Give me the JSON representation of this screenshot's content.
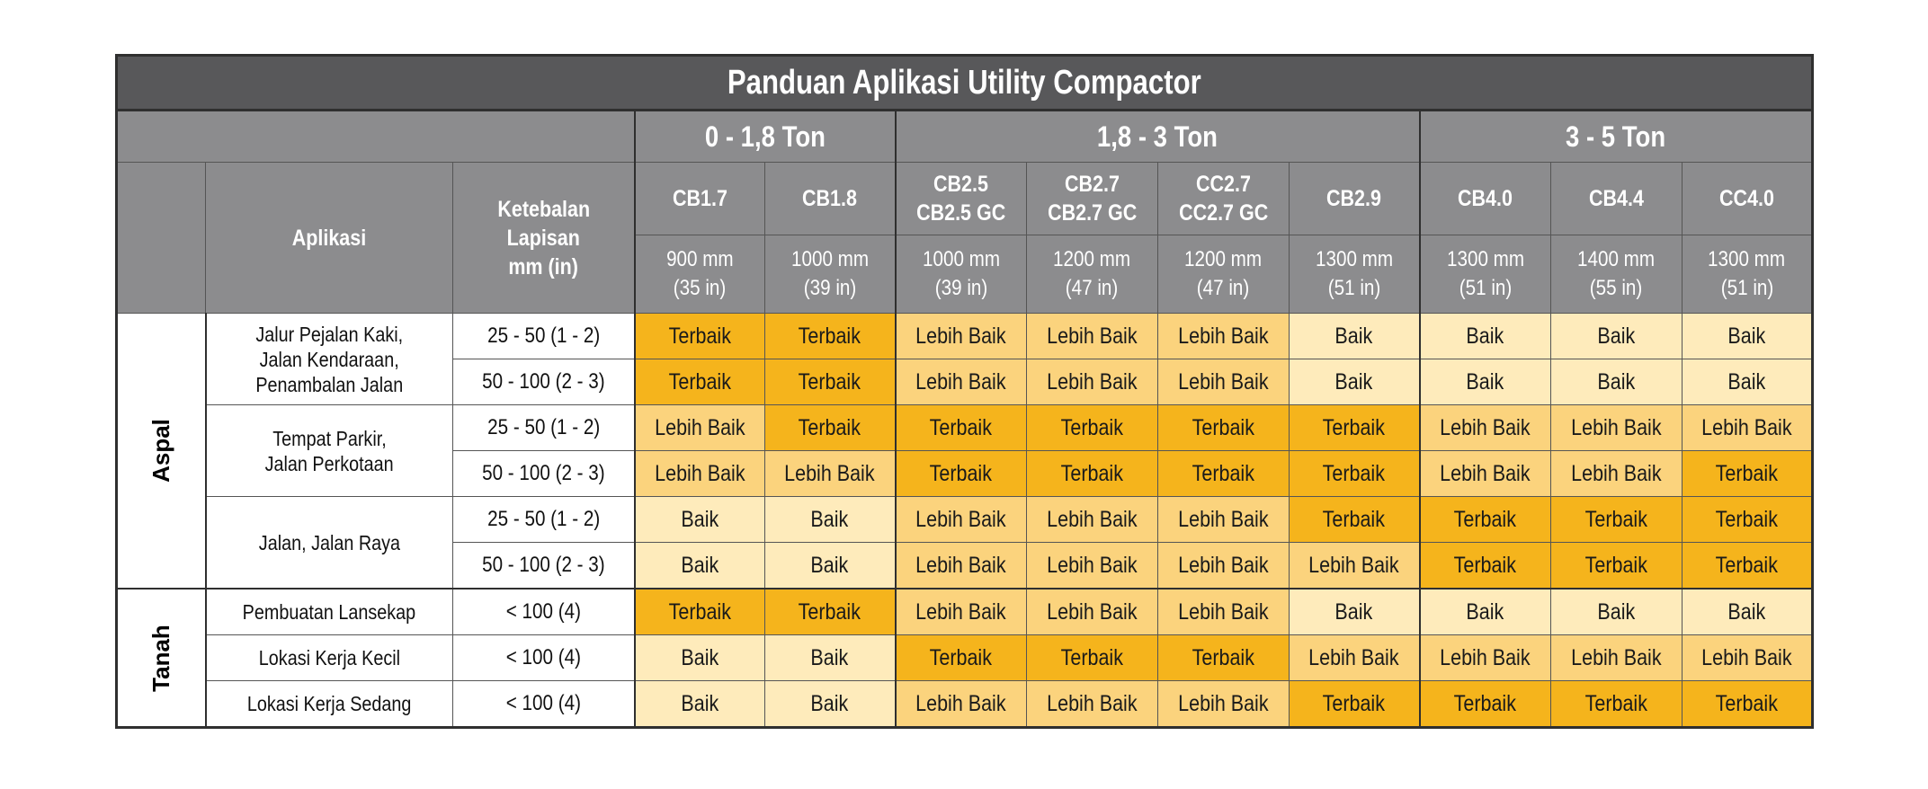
{
  "title": "Panduan Aplikasi Utility Compactor",
  "colors": {
    "title_bg": "#58585a",
    "header_bg": "#8c8c8e",
    "Terbaik": "#f5b41c",
    "Lebih Baik": "#fbd37d",
    "Baik": "#feebbb"
  },
  "header": {
    "application_label": "Aplikasi",
    "thickness_label_lines": [
      "Ketebalan",
      "Lapisan",
      "mm (in)"
    ],
    "groups": [
      {
        "label": "0 - 1,8 Ton",
        "span": 2
      },
      {
        "label": "1,8 - 3 Ton",
        "span": 4
      },
      {
        "label": "3 - 5 Ton",
        "span": 3
      }
    ],
    "models": [
      {
        "name_lines": [
          "CB1.7"
        ],
        "width_lines": [
          "900 mm",
          "(35 in)"
        ]
      },
      {
        "name_lines": [
          "CB1.8"
        ],
        "width_lines": [
          "1000 mm",
          "(39 in)"
        ]
      },
      {
        "name_lines": [
          "CB2.5",
          "CB2.5 GC"
        ],
        "width_lines": [
          "1000 mm",
          "(39 in)"
        ]
      },
      {
        "name_lines": [
          "CB2.7",
          "CB2.7 GC"
        ],
        "width_lines": [
          "1200 mm",
          "(47 in)"
        ]
      },
      {
        "name_lines": [
          "CC2.7",
          "CC2.7 GC"
        ],
        "width_lines": [
          "1200 mm",
          "(47 in)"
        ]
      },
      {
        "name_lines": [
          "CB2.9"
        ],
        "width_lines": [
          "1300 mm",
          "(51 in)"
        ]
      },
      {
        "name_lines": [
          "CB4.0"
        ],
        "width_lines": [
          "1300 mm",
          "(51 in)"
        ]
      },
      {
        "name_lines": [
          "CB4.4"
        ],
        "width_lines": [
          "1400 mm",
          "(55 in)"
        ]
      },
      {
        "name_lines": [
          "CC4.0"
        ],
        "width_lines": [
          "1300 mm",
          "(51 in)"
        ]
      }
    ]
  },
  "categories": [
    {
      "name": "Aspal",
      "applications": [
        {
          "name_lines": [
            "Jalur Pejalan Kaki,",
            "Jalan Kendaraan,",
            "Penambalan Jalan"
          ],
          "rows": [
            {
              "thickness": "25 - 50 (1 - 2)",
              "values": [
                "Terbaik",
                "Terbaik",
                "Lebih Baik",
                "Lebih Baik",
                "Lebih Baik",
                "Baik",
                "Baik",
                "Baik",
                "Baik"
              ]
            },
            {
              "thickness": "50 - 100 (2 - 3)",
              "values": [
                "Terbaik",
                "Terbaik",
                "Lebih Baik",
                "Lebih Baik",
                "Lebih Baik",
                "Baik",
                "Baik",
                "Baik",
                "Baik"
              ]
            }
          ]
        },
        {
          "name_lines": [
            "Tempat Parkir,",
            "Jalan Perkotaan"
          ],
          "rows": [
            {
              "thickness": "25 - 50 (1 - 2)",
              "values": [
                "Lebih Baik",
                "Terbaik",
                "Terbaik",
                "Terbaik",
                "Terbaik",
                "Terbaik",
                "Lebih Baik",
                "Lebih Baik",
                "Lebih Baik"
              ]
            },
            {
              "thickness": "50 - 100 (2 - 3)",
              "values": [
                "Lebih Baik",
                "Lebih Baik",
                "Terbaik",
                "Terbaik",
                "Terbaik",
                "Terbaik",
                "Lebih Baik",
                "Lebih Baik",
                "Terbaik"
              ]
            }
          ]
        },
        {
          "name_lines": [
            "Jalan, Jalan Raya"
          ],
          "rows": [
            {
              "thickness": "25 - 50 (1 - 2)",
              "values": [
                "Baik",
                "Baik",
                "Lebih Baik",
                "Lebih Baik",
                "Lebih Baik",
                "Terbaik",
                "Terbaik",
                "Terbaik",
                "Terbaik"
              ]
            },
            {
              "thickness": "50 - 100 (2 - 3)",
              "values": [
                "Baik",
                "Baik",
                "Lebih Baik",
                "Lebih Baik",
                "Lebih Baik",
                "Lebih Baik",
                "Terbaik",
                "Terbaik",
                "Terbaik"
              ]
            }
          ]
        }
      ]
    },
    {
      "name": "Tanah",
      "applications": [
        {
          "name_lines": [
            "Pembuatan Lansekap"
          ],
          "rows": [
            {
              "thickness": "< 100 (4)",
              "values": [
                "Terbaik",
                "Terbaik",
                "Lebih Baik",
                "Lebih Baik",
                "Lebih Baik",
                "Baik",
                "Baik",
                "Baik",
                "Baik"
              ]
            }
          ]
        },
        {
          "name_lines": [
            "Lokasi Kerja Kecil"
          ],
          "rows": [
            {
              "thickness": "< 100 (4)",
              "values": [
                "Baik",
                "Baik",
                "Terbaik",
                "Terbaik",
                "Terbaik",
                "Lebih Baik",
                "Lebih Baik",
                "Lebih Baik",
                "Lebih Baik"
              ]
            }
          ]
        },
        {
          "name_lines": [
            "Lokasi Kerja Sedang"
          ],
          "rows": [
            {
              "thickness": "< 100 (4)",
              "values": [
                "Baik",
                "Baik",
                "Lebih Baik",
                "Lebih Baik",
                "Lebih Baik",
                "Terbaik",
                "Terbaik",
                "Terbaik",
                "Terbaik"
              ]
            }
          ]
        }
      ]
    }
  ]
}
